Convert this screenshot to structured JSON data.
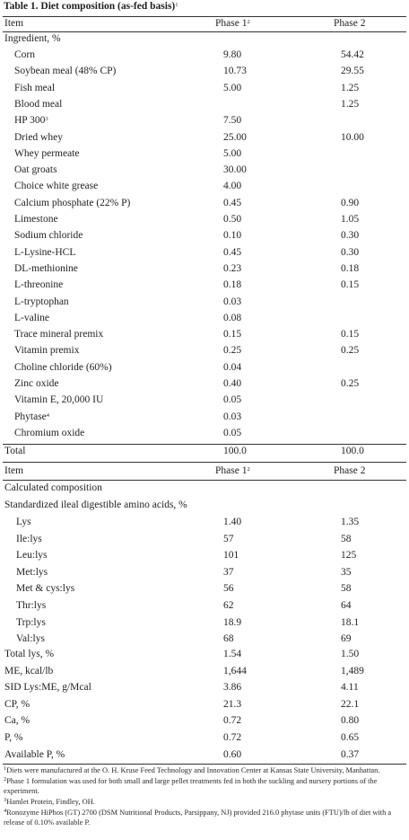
{
  "title": {
    "text": "Table 1. Diet composition (as-fed basis)",
    "sup": "1"
  },
  "header1": {
    "item": "Item",
    "phase1": "Phase 1",
    "phase1_sup": "2",
    "phase2": "Phase 2"
  },
  "section_ingredient": "Ingredient, %",
  "ingredients": [
    {
      "name": "Corn",
      "sup": "",
      "p1": "9.80",
      "p2": "54.42"
    },
    {
      "name": "Soybean meal (48% CP)",
      "sup": "",
      "p1": "10.73",
      "p2": "29.55"
    },
    {
      "name": "Fish meal",
      "sup": "",
      "p1": "5.00",
      "p2": "1.25"
    },
    {
      "name": "Blood meal",
      "sup": "",
      "p1": "",
      "p2": "1.25"
    },
    {
      "name": "HP 300",
      "sup": "3",
      "p1": "7.50",
      "p2": ""
    },
    {
      "name": "Dried whey",
      "sup": "",
      "p1": "25.00",
      "p2": "10.00"
    },
    {
      "name": "Whey permeate",
      "sup": "",
      "p1": "5.00",
      "p2": ""
    },
    {
      "name": "Oat groats",
      "sup": "",
      "p1": "30.00",
      "p2": ""
    },
    {
      "name": "Choice white grease",
      "sup": "",
      "p1": "4.00",
      "p2": ""
    },
    {
      "name": "Calcium phosphate (22% P)",
      "sup": "",
      "p1": "0.45",
      "p2": "0.90"
    },
    {
      "name": "Limestone",
      "sup": "",
      "p1": "0.50",
      "p2": "1.05"
    },
    {
      "name": "Sodium chloride",
      "sup": "",
      "p1": "0.10",
      "p2": "0.30"
    },
    {
      "name": "L-Lysine-HCL",
      "sup": "",
      "p1": "0.45",
      "p2": "0.30"
    },
    {
      "name": "DL-methionine",
      "sup": "",
      "p1": "0.23",
      "p2": "0.18"
    },
    {
      "name": "L-threonine",
      "sup": "",
      "p1": "0.18",
      "p2": "0.15"
    },
    {
      "name": "L-tryptophan",
      "sup": "",
      "p1": "0.03",
      "p2": ""
    },
    {
      "name": "L-valine",
      "sup": "",
      "p1": "0.08",
      "p2": ""
    },
    {
      "name": "Trace mineral premix",
      "sup": "",
      "p1": "0.15",
      "p2": "0.15"
    },
    {
      "name": "Vitamin premix",
      "sup": "",
      "p1": "0.25",
      "p2": "0.25"
    },
    {
      "name": "Choline chloride (60%)",
      "sup": "",
      "p1": "0.04",
      "p2": ""
    },
    {
      "name": "Zinc oxide",
      "sup": "",
      "p1": "0.40",
      "p2": "0.25"
    },
    {
      "name": "Vitamin E, 20,000 IU",
      "sup": "",
      "p1": "0.05",
      "p2": ""
    },
    {
      "name": "Phytase",
      "sup": "4",
      "p1": "0.03",
      "p2": ""
    },
    {
      "name": "Chromium oxide",
      "sup": "",
      "p1": "0.05",
      "p2": ""
    }
  ],
  "total": {
    "name": "Total",
    "p1": "100.0",
    "p2": "100.0"
  },
  "header2": {
    "item": "Item",
    "phase1": "Phase 1",
    "phase1_sup": "2",
    "phase2": "Phase 2"
  },
  "section_calculated": "Calculated composition",
  "section_sid": "Standardized ileal digestible amino acids, %",
  "amino_acids": [
    {
      "name": "Lys",
      "p1": "1.40",
      "p2": "1.35"
    },
    {
      "name": "Ile:lys",
      "p1": "57",
      "p2": "58"
    },
    {
      "name": "Leu:lys",
      "p1": "101",
      "p2": "125"
    },
    {
      "name": "Met:lys",
      "p1": "37",
      "p2": "35"
    },
    {
      "name": "Met & cys:lys",
      "p1": "56",
      "p2": "58"
    },
    {
      "name": "Thr:lys",
      "p1": "62",
      "p2": "64"
    },
    {
      "name": "Trp:lys",
      "p1": "18.9",
      "p2": "18.1"
    },
    {
      "name": "Val:lys",
      "p1": "68",
      "p2": "69"
    }
  ],
  "composition": [
    {
      "name": "Total lys, %",
      "p1": "1.54",
      "p2": "1.50"
    },
    {
      "name": "ME, kcal/lb",
      "p1": "1,644",
      "p2": "1,489"
    },
    {
      "name": "SID Lys:ME, g/Mcal",
      "p1": "3.86",
      "p2": "4.11"
    },
    {
      "name": "CP, %",
      "p1": "21.3",
      "p2": "22.1"
    },
    {
      "name": "Ca, %",
      "p1": "0.72",
      "p2": "0.80"
    },
    {
      "name": "P, %",
      "p1": "0.72",
      "p2": "0.65"
    },
    {
      "name": "Available P, %",
      "p1": "0.60",
      "p2": "0.37"
    }
  ],
  "footnotes": [
    {
      "sup": "1",
      "text": "Diets were manufactured at the O. H. Kruse Feed Technology and Innovation Center at Kansas State University, Manhattan."
    },
    {
      "sup": "2",
      "text": "Phase 1 formulation was used for both small and large pellet treatments fed in both the suckling and nursery portions of the experiment."
    },
    {
      "sup": "3",
      "text": "Hamlet Protein, Findley, OH."
    },
    {
      "sup": "4",
      "text": "Ronozyme HiPhos (GT) 2700 (DSM Nutritional Products, Parsippany, NJ) provided 216.0 phytase units (FTU)/lb of diet with a release of 0.10% available P."
    }
  ]
}
